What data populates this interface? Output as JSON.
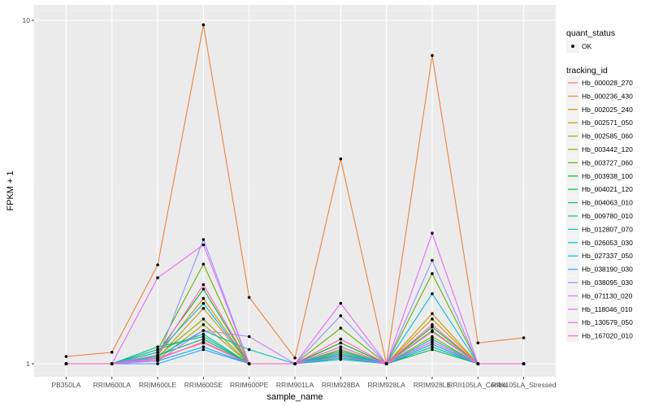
{
  "chart_data": {
    "type": "line",
    "xlabel": "sample_name",
    "ylabel": "FPKM + 1",
    "y_scale": "log",
    "ylim": [
      1,
      10
    ],
    "y_ticks": [
      {
        "value": 1,
        "label": "1"
      },
      {
        "value": 10,
        "label": "10"
      }
    ],
    "grid": true,
    "legend_position": "right",
    "categories": [
      "PB350LA",
      "RRIM600LA",
      "RRIM600LE",
      "RRIM600SE",
      "RRIM600PE",
      "RRIM901LA",
      "RRIM928BA",
      "RRIM928LA",
      "RRIM928LE",
      "RRII105LA_Control",
      "RRII105LA_Stressed"
    ],
    "series": [
      {
        "name": "Hb_000028_270",
        "color": "#F8766D",
        "values": [
          1.0,
          1.0,
          1.04,
          1.15,
          1.0,
          1.0,
          1.05,
          1.0,
          1.12,
          1.0,
          1.0
        ]
      },
      {
        "name": "Hb_000236_430",
        "color": "#EC8239",
        "values": [
          1.05,
          1.08,
          1.94,
          9.7,
          1.56,
          1.04,
          3.95,
          1.0,
          7.9,
          1.15,
          1.19
        ]
      },
      {
        "name": "Hb_002025_240",
        "color": "#DB8E00",
        "values": [
          1.0,
          1.0,
          1.06,
          1.55,
          1.0,
          1.0,
          1.15,
          1.0,
          1.35,
          1.0,
          1.0
        ]
      },
      {
        "name": "Hb_002571_050",
        "color": "#C79800",
        "values": [
          1.0,
          1.0,
          1.04,
          1.45,
          1.0,
          1.0,
          1.12,
          1.0,
          1.4,
          1.0,
          1.0
        ]
      },
      {
        "name": "Hb_002585_060",
        "color": "#AEA200",
        "values": [
          1.0,
          1.0,
          1.03,
          1.3,
          1.0,
          1.0,
          1.1,
          1.0,
          1.25,
          1.0,
          1.0
        ]
      },
      {
        "name": "Hb_003442_120",
        "color": "#8FAA00",
        "values": [
          1.0,
          1.0,
          1.05,
          1.35,
          1.0,
          1.0,
          1.08,
          1.0,
          1.2,
          1.0,
          1.0
        ]
      },
      {
        "name": "Hb_003727_060",
        "color": "#64B200",
        "values": [
          1.0,
          1.0,
          1.1,
          1.95,
          1.0,
          1.0,
          1.27,
          1.0,
          1.83,
          1.0,
          1.0
        ]
      },
      {
        "name": "Hb_003938_100",
        "color": "#00B81B",
        "values": [
          1.0,
          1.0,
          1.08,
          1.65,
          1.0,
          1.0,
          1.15,
          1.0,
          1.28,
          1.0,
          1.0
        ]
      },
      {
        "name": "Hb_004021_120",
        "color": "#00BD5C",
        "values": [
          1.0,
          1.0,
          1.06,
          1.18,
          1.0,
          1.0,
          1.05,
          1.0,
          1.1,
          1.0,
          1.0
        ]
      },
      {
        "name": "Hb_004063_010",
        "color": "#00C085",
        "values": [
          1.0,
          1.0,
          1.12,
          1.2,
          1.0,
          1.0,
          1.06,
          1.0,
          1.14,
          1.0,
          1.0
        ]
      },
      {
        "name": "Hb_009780_010",
        "color": "#00C1A7",
        "values": [
          1.0,
          1.0,
          1.1,
          1.22,
          1.0,
          1.0,
          1.03,
          1.0,
          1.12,
          1.0,
          1.0
        ]
      },
      {
        "name": "Hb_012807_070",
        "color": "#00BFC4",
        "values": [
          1.0,
          1.0,
          1.05,
          1.25,
          1.1,
          1.0,
          1.04,
          1.0,
          1.18,
          1.0,
          1.0
        ]
      },
      {
        "name": "Hb_026053_030",
        "color": "#00BADE",
        "values": [
          1.0,
          1.0,
          1.08,
          1.5,
          1.0,
          1.0,
          1.09,
          1.0,
          1.6,
          1.0,
          1.0
        ]
      },
      {
        "name": "Hb_027337_050",
        "color": "#00B0F6",
        "values": [
          1.0,
          1.0,
          1.02,
          1.12,
          1.0,
          1.0,
          1.07,
          1.0,
          1.16,
          1.0,
          1.0
        ]
      },
      {
        "name": "Hb_038190_030",
        "color": "#35A2FF",
        "values": [
          1.0,
          1.0,
          1.0,
          1.1,
          1.0,
          1.0,
          1.05,
          1.0,
          1.14,
          1.0,
          1.0
        ]
      },
      {
        "name": "Hb_038095_030",
        "color": "#9590FF",
        "values": [
          1.0,
          1.0,
          1.04,
          2.3,
          1.0,
          1.0,
          1.38,
          1.0,
          2.0,
          1.0,
          1.0
        ]
      },
      {
        "name": "Hb_071130_020",
        "color": "#C77CFF",
        "values": [
          1.0,
          1.0,
          1.02,
          1.25,
          1.2,
          1.0,
          1.12,
          1.0,
          1.24,
          1.0,
          1.0
        ]
      },
      {
        "name": "Hb_118046_010",
        "color": "#E76BF3",
        "values": [
          1.0,
          1.0,
          1.78,
          2.22,
          1.0,
          1.0,
          1.5,
          1.0,
          2.4,
          1.0,
          1.0
        ]
      },
      {
        "name": "Hb_130579_050",
        "color": "#FA62DB",
        "values": [
          1.0,
          1.0,
          1.03,
          1.16,
          1.0,
          1.0,
          1.05,
          1.0,
          1.16,
          1.0,
          1.0
        ]
      },
      {
        "name": "Hb_167020_010",
        "color": "#FF61C3",
        "values": [
          1.0,
          1.0,
          1.06,
          1.7,
          1.0,
          1.0,
          1.18,
          1.0,
          1.3,
          1.0,
          1.0
        ]
      }
    ],
    "point_series": {
      "legend_title": "quant_status",
      "label": "OK",
      "color": "#000000"
    },
    "line_legend_title": "tracking_id"
  }
}
